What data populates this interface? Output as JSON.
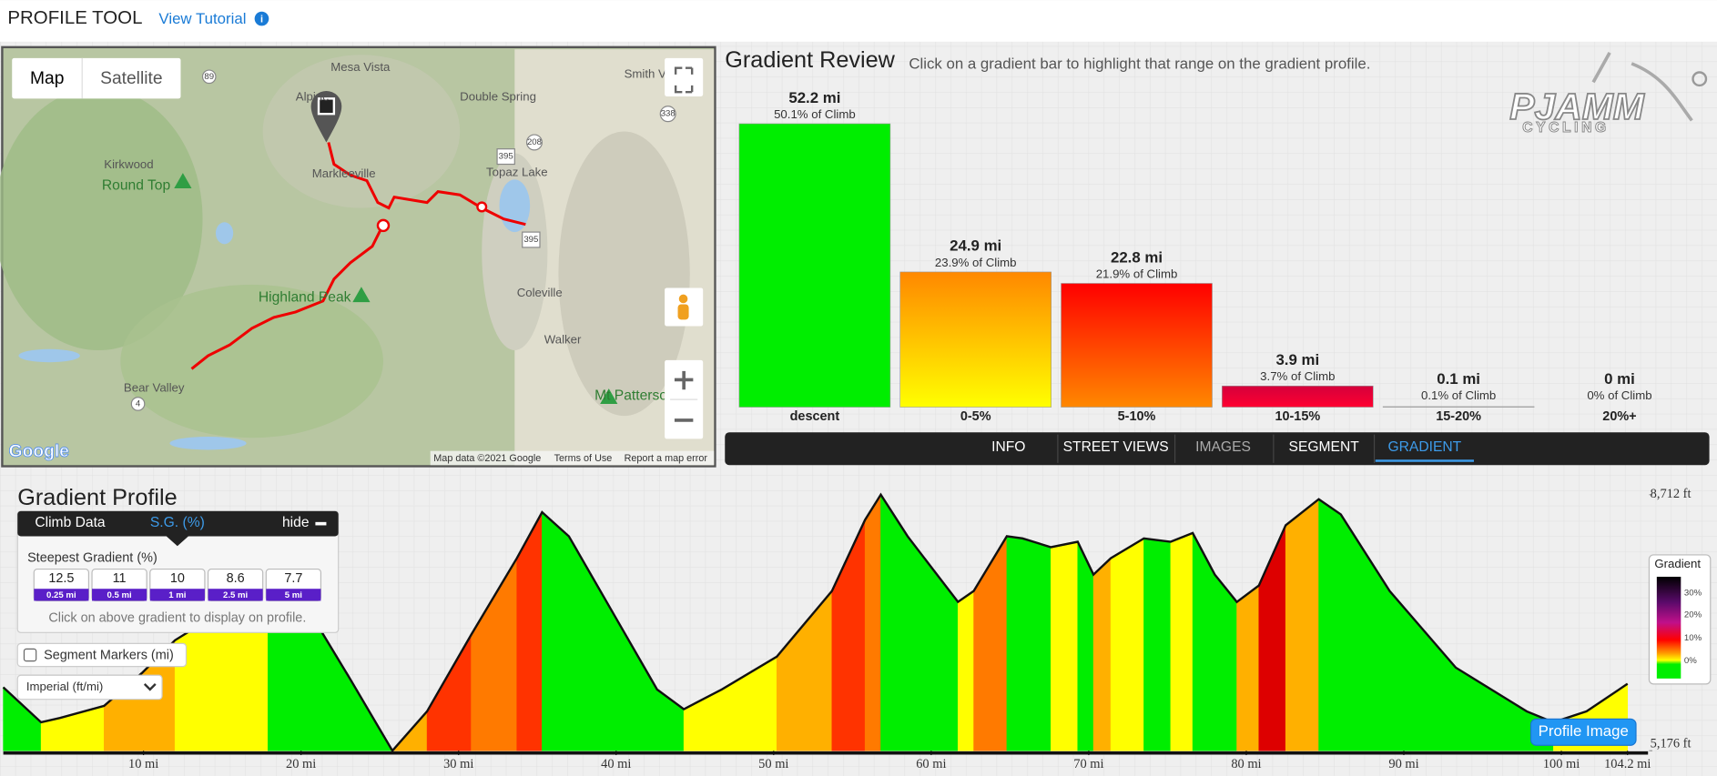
{
  "header": {
    "title": "PROFILE TOOL",
    "link": "View Tutorial"
  },
  "map": {
    "buttons": [
      "Map",
      "Satellite"
    ],
    "places": [
      "Mesa Vista",
      "Alpine",
      "Smith V",
      "Double Spring",
      "Kirkwood",
      "Round Top",
      "Markleeville",
      "Topaz Lake",
      "Highland Peak",
      "Coleville",
      "Walker",
      "Bear Valley",
      "Mt Patterso"
    ],
    "roads": [
      "89",
      "338",
      "208",
      "395",
      "395",
      "4"
    ],
    "footer": [
      "Map data ©2021 Google",
      "Terms of Use",
      "Report a map error"
    ],
    "logo": "Google"
  },
  "logo": {
    "name": "PJAMM",
    "sub": "CYCLING"
  },
  "tabs": [
    "INFO",
    "STREET VIEWS",
    "IMAGES",
    "SEGMENT",
    "GRADIENT"
  ],
  "climb_data": {
    "tabs": [
      "Climb Data",
      "S.G. (%)",
      "hide"
    ],
    "heading": "Steepest Gradient (%)",
    "values": [
      "12.5",
      "11",
      "10",
      "8.6",
      "7.7"
    ],
    "distances": [
      "0.25 mi",
      "0.5 mi",
      "1 mi",
      "2.5 mi",
      "5 mi"
    ],
    "hint": "Click on above gradient to display on profile."
  },
  "controls": {
    "checkbox": "Segment Markers (mi)",
    "select": "Imperial (ft/mi)",
    "button": "Profile Image"
  },
  "chart_data": [
    {
      "type": "bar",
      "title": "Gradient Review",
      "subtitle": "Click on a gradient bar to highlight that range on the gradient profile.",
      "categories": [
        "descent",
        "0-5%",
        "5-10%",
        "10-15%",
        "15-20%",
        "20%+"
      ],
      "values": [
        52.2,
        24.9,
        22.8,
        3.9,
        0.1,
        0
      ],
      "value_labels": [
        "52.2 mi",
        "24.9 mi",
        "22.8 mi",
        "3.9 mi",
        "0.1 mi",
        "0 mi"
      ],
      "climb_labels": [
        "50.1% of Climb",
        "23.9% of Climb",
        "21.9% of Climb",
        "3.7% of Climb",
        "0.1% of Climb",
        "0% of Climb"
      ],
      "colors": [
        [
          "#00ee00",
          "#00ee00"
        ],
        [
          "#ff8800",
          "#ffff00"
        ],
        [
          "#ff0000",
          "#ff8800"
        ],
        [
          "#d4003c",
          "#ff0030"
        ],
        [
          "#c8c8c8",
          "#c8c8c8"
        ],
        [
          "#000000",
          "#000000"
        ]
      ],
      "ylim": [
        0,
        52.2
      ]
    },
    {
      "type": "area",
      "title": "Gradient Profile",
      "x": [
        1.1,
        3.5,
        4.7,
        7.5,
        9.9,
        12.0,
        14.8,
        17.9,
        21.0,
        23.1,
        25.8,
        28.0,
        30.8,
        33.7,
        35.3,
        37.0,
        39.8,
        42.6,
        44.3,
        46.7,
        50.2,
        53.7,
        55.8,
        56.8,
        58.5,
        61.7,
        62.7,
        64.8,
        65.8,
        67.6,
        69.3,
        70.3,
        71.4,
        73.5,
        75.2,
        76.6,
        78.0,
        79.4,
        80.8,
        82.5,
        84.6,
        86.0,
        89.1,
        93.3,
        97.8,
        99.5,
        101.6,
        104.2
      ],
      "values": [
        6052,
        5569,
        5629,
        5796,
        6249,
        6702,
        7080,
        7080,
        6929,
        6173,
        5176,
        5720,
        6778,
        7835,
        8470,
        8138,
        7080,
        6022,
        5750,
        6022,
        6475,
        7382,
        8364,
        8712,
        8138,
        7231,
        7382,
        8138,
        8108,
        7987,
        8062,
        7609,
        7835,
        8108,
        8062,
        8183,
        7609,
        7231,
        7458,
        8289,
        8650,
        8440,
        7382,
        6324,
        5720,
        5569,
        5720,
        6100
      ],
      "xlim": [
        1.1,
        105.5
      ],
      "ylim": [
        5176,
        8712
      ],
      "yticks": [
        {
          "value": 8712,
          "label": "8,712 ft"
        },
        {
          "value": 5176,
          "label": "5,176 ft"
        }
      ],
      "xticks": [
        {
          "value": 10,
          "label": "10 mi"
        },
        {
          "value": 20,
          "label": "20 mi"
        },
        {
          "value": 30,
          "label": "30 mi"
        },
        {
          "value": 40,
          "label": "40 mi"
        },
        {
          "value": 50,
          "label": "50 mi"
        },
        {
          "value": 60,
          "label": "60 mi"
        },
        {
          "value": 70,
          "label": "70 mi"
        },
        {
          "value": 80,
          "label": "80 mi"
        },
        {
          "value": 90,
          "label": "90 mi"
        },
        {
          "value": 100,
          "label": "100 mi"
        },
        {
          "value": 104.2,
          "label": "104.2 mi"
        }
      ],
      "legend": {
        "title": "Gradient",
        "ticks": [
          "30%",
          "20%",
          "10%",
          "0%"
        ]
      }
    }
  ]
}
